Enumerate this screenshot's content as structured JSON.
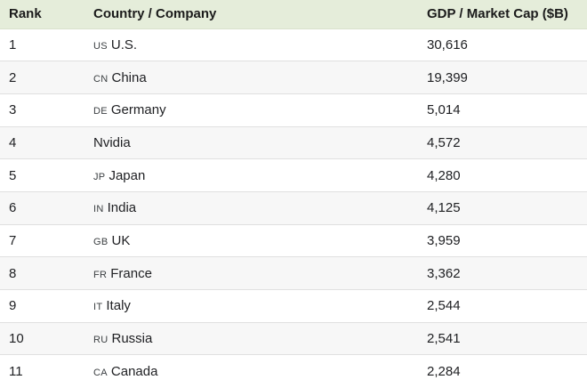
{
  "table": {
    "columns": [
      {
        "key": "rank",
        "label": "Rank"
      },
      {
        "key": "name",
        "label": "Country / Company"
      },
      {
        "key": "value",
        "label": "GDP / Market Cap ($B)"
      }
    ],
    "rows": [
      {
        "rank": "1",
        "code": "US",
        "name": "U.S.",
        "value": "30,616"
      },
      {
        "rank": "2",
        "code": "CN",
        "name": "China",
        "value": "19,399"
      },
      {
        "rank": "3",
        "code": "DE",
        "name": "Germany",
        "value": "5,014"
      },
      {
        "rank": "4",
        "code": "",
        "name": "Nvidia",
        "value": "4,572"
      },
      {
        "rank": "5",
        "code": "JP",
        "name": "Japan",
        "value": "4,280"
      },
      {
        "rank": "6",
        "code": "IN",
        "name": "India",
        "value": "4,125"
      },
      {
        "rank": "7",
        "code": "GB",
        "name": "UK",
        "value": "3,959"
      },
      {
        "rank": "8",
        "code": "FR",
        "name": "France",
        "value": "3,362"
      },
      {
        "rank": "9",
        "code": "IT",
        "name": "Italy",
        "value": "2,544"
      },
      {
        "rank": "10",
        "code": "RU",
        "name": "Russia",
        "value": "2,541"
      },
      {
        "rank": "11",
        "code": "CA",
        "name": "Canada",
        "value": "2,284"
      }
    ]
  },
  "colors": {
    "header_bg": "#e5edda",
    "header_text": "#1b1b1b",
    "row_text": "#202124",
    "code_text": "#3c4043",
    "row_alt_bg": "#f7f7f7",
    "row_border": "#e0e0e0"
  }
}
